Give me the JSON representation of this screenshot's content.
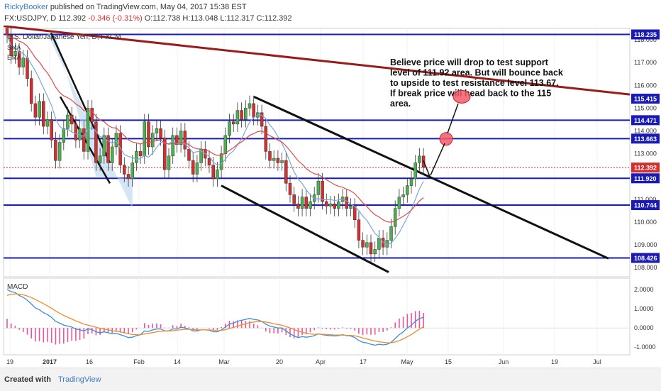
{
  "header": {
    "author": "RickyBooker",
    "published": "published on TradingView.com, May 04, 2017 15:38 EST",
    "symbol": "FX:USDJPY, D",
    "last": "112.392",
    "change": "-0.346 (-0.31%)",
    "ohlc": "O:112.738 H:113.048 L:112.317 C:112.392"
  },
  "footer": {
    "created_with": "Created with",
    "brand": "TradingView"
  },
  "colors": {
    "level": "#1a1ab4",
    "trend": "#9a1b1b",
    "up": "#4caf50",
    "down": "#d32f2f",
    "macd": "#3a8fd9",
    "signal": "#f08c2e",
    "hist": "#e8559a"
  },
  "chart_data": {
    "type": "candlestick",
    "instrument": "U.S. Dollar/Japanese Yen, D, FXCM",
    "indicator_labels": [
      "SMA",
      "EMA"
    ],
    "annotation": "Believe price will drop to test support level of 111.92 area. But will bounce back to upside to test resistance level 113.67. If break price will head back to the 115 area.",
    "price_axis": {
      "ticks": [
        "118.000",
        "117.000",
        "116.000",
        "115.000",
        "114.000",
        "113.000",
        "112.000",
        "111.000",
        "110.000",
        "109.000",
        "108.000"
      ],
      "ylim": [
        107.6,
        118.5
      ]
    },
    "level_labels": [
      "118.235",
      "115.415",
      "114.471",
      "113.663",
      "112.392",
      "111.920",
      "110.744",
      "108.426"
    ],
    "levels": [
      118.235,
      114.471,
      113.663,
      111.92,
      110.744,
      108.426
    ],
    "last_price": 112.392,
    "x_axis": [
      "19",
      "2017",
      "16",
      "Feb",
      "14",
      "Mar",
      "20",
      "Apr",
      "17",
      "May",
      "15",
      "Jun",
      "19",
      "Jul"
    ],
    "closes": [
      118.2,
      117.3,
      117.5,
      116.8,
      117.2,
      116.3,
      115.2,
      114.6,
      115.3,
      114.2,
      114.5,
      113.6,
      112.7,
      113.5,
      114.1,
      114.7,
      114.3,
      113.6,
      114.1,
      113.1,
      115.0,
      114.4,
      112.6,
      112.9,
      113.8,
      112.6,
      113.3,
      113.9,
      112.5,
      112.1,
      111.9,
      112.6,
      113.1,
      112.9,
      114.4,
      113.3,
      113.9,
      114.1,
      113.7,
      112.3,
      112.9,
      113.8,
      113.4,
      114.0,
      113.2,
      112.7,
      112.1,
      112.6,
      113.2,
      112.8,
      112.5,
      111.9,
      112.3,
      113.0,
      113.8,
      114.4,
      114.3,
      114.9,
      114.5,
      115.0,
      115.2,
      114.6,
      114.8,
      114.2,
      113.1,
      112.7,
      112.8,
      112.6,
      112.7,
      111.7,
      111.2,
      110.8,
      110.6,
      111.1,
      110.6,
      110.9,
      111.2,
      111.8,
      110.9,
      110.7,
      110.8,
      110.6,
      110.9,
      111.1,
      110.6,
      110.7,
      110.1,
      109.2,
      108.9,
      109.1,
      108.6,
      108.8,
      109.3,
      108.9,
      109.2,
      109.8,
      110.6,
      111.1,
      111.2,
      111.6,
      111.9,
      112.6,
      112.9,
      112.4
    ],
    "macd_axis": {
      "ticks": [
        "2.0000",
        "1.0000",
        "0.0000",
        "-1.0000"
      ],
      "ylim": [
        -1.4,
        2.6
      ]
    },
    "macd_label": "MACD",
    "macd": [
      2.0,
      1.9,
      1.85,
      1.7,
      1.6,
      1.45,
      1.25,
      1.05,
      0.95,
      0.8,
      0.7,
      0.55,
      0.35,
      0.25,
      0.15,
      0.1,
      0.05,
      -0.05,
      -0.1,
      -0.15,
      -0.05,
      -0.08,
      -0.2,
      -0.25,
      -0.2,
      -0.25,
      -0.3,
      -0.28,
      -0.35,
      -0.42,
      -0.5,
      -0.48,
      -0.4,
      -0.35,
      -0.15,
      -0.18,
      -0.1,
      -0.05,
      -0.05,
      -0.15,
      -0.15,
      -0.05,
      -0.05,
      0.05,
      0.0,
      -0.05,
      -0.15,
      -0.15,
      -0.1,
      -0.1,
      -0.12,
      -0.2,
      -0.2,
      -0.1,
      0.05,
      0.2,
      0.25,
      0.35,
      0.4,
      0.45,
      0.5,
      0.45,
      0.42,
      0.35,
      0.2,
      0.1,
      0.05,
      0.0,
      0.0,
      -0.15,
      -0.3,
      -0.42,
      -0.5,
      -0.45,
      -0.48,
      -0.45,
      -0.4,
      -0.3,
      -0.35,
      -0.38,
      -0.4,
      -0.42,
      -0.4,
      -0.35,
      -0.4,
      -0.42,
      -0.5,
      -0.65,
      -0.75,
      -0.78,
      -0.85,
      -0.9,
      -0.85,
      -0.88,
      -0.85,
      -0.75,
      -0.55,
      -0.35,
      -0.2,
      0.0,
      0.15,
      0.35,
      0.5,
      0.55
    ],
    "signal": [
      1.7,
      1.75,
      1.78,
      1.76,
      1.73,
      1.67,
      1.59,
      1.49,
      1.38,
      1.27,
      1.15,
      1.03,
      0.89,
      0.77,
      0.66,
      0.56,
      0.47,
      0.37,
      0.29,
      0.2,
      0.15,
      0.1,
      0.04,
      -0.02,
      -0.06,
      -0.1,
      -0.14,
      -0.17,
      -0.2,
      -0.25,
      -0.3,
      -0.34,
      -0.35,
      -0.35,
      -0.31,
      -0.28,
      -0.24,
      -0.2,
      -0.17,
      -0.16,
      -0.16,
      -0.14,
      -0.12,
      -0.09,
      -0.07,
      -0.07,
      -0.08,
      -0.1,
      -0.1,
      -0.1,
      -0.1,
      -0.12,
      -0.14,
      -0.13,
      -0.09,
      -0.03,
      0.03,
      0.1,
      0.16,
      0.22,
      0.28,
      0.31,
      0.33,
      0.34,
      0.31,
      0.27,
      0.22,
      0.18,
      0.14,
      0.08,
      0.0,
      -0.08,
      -0.17,
      -0.22,
      -0.27,
      -0.31,
      -0.33,
      -0.32,
      -0.33,
      -0.34,
      -0.35,
      -0.37,
      -0.37,
      -0.37,
      -0.38,
      -0.39,
      -0.41,
      -0.46,
      -0.52,
      -0.57,
      -0.63,
      -0.68,
      -0.72,
      -0.75,
      -0.77,
      -0.77,
      -0.73,
      -0.66,
      -0.57,
      -0.46,
      -0.34,
      -0.2,
      -0.06,
      0.06
    ]
  }
}
